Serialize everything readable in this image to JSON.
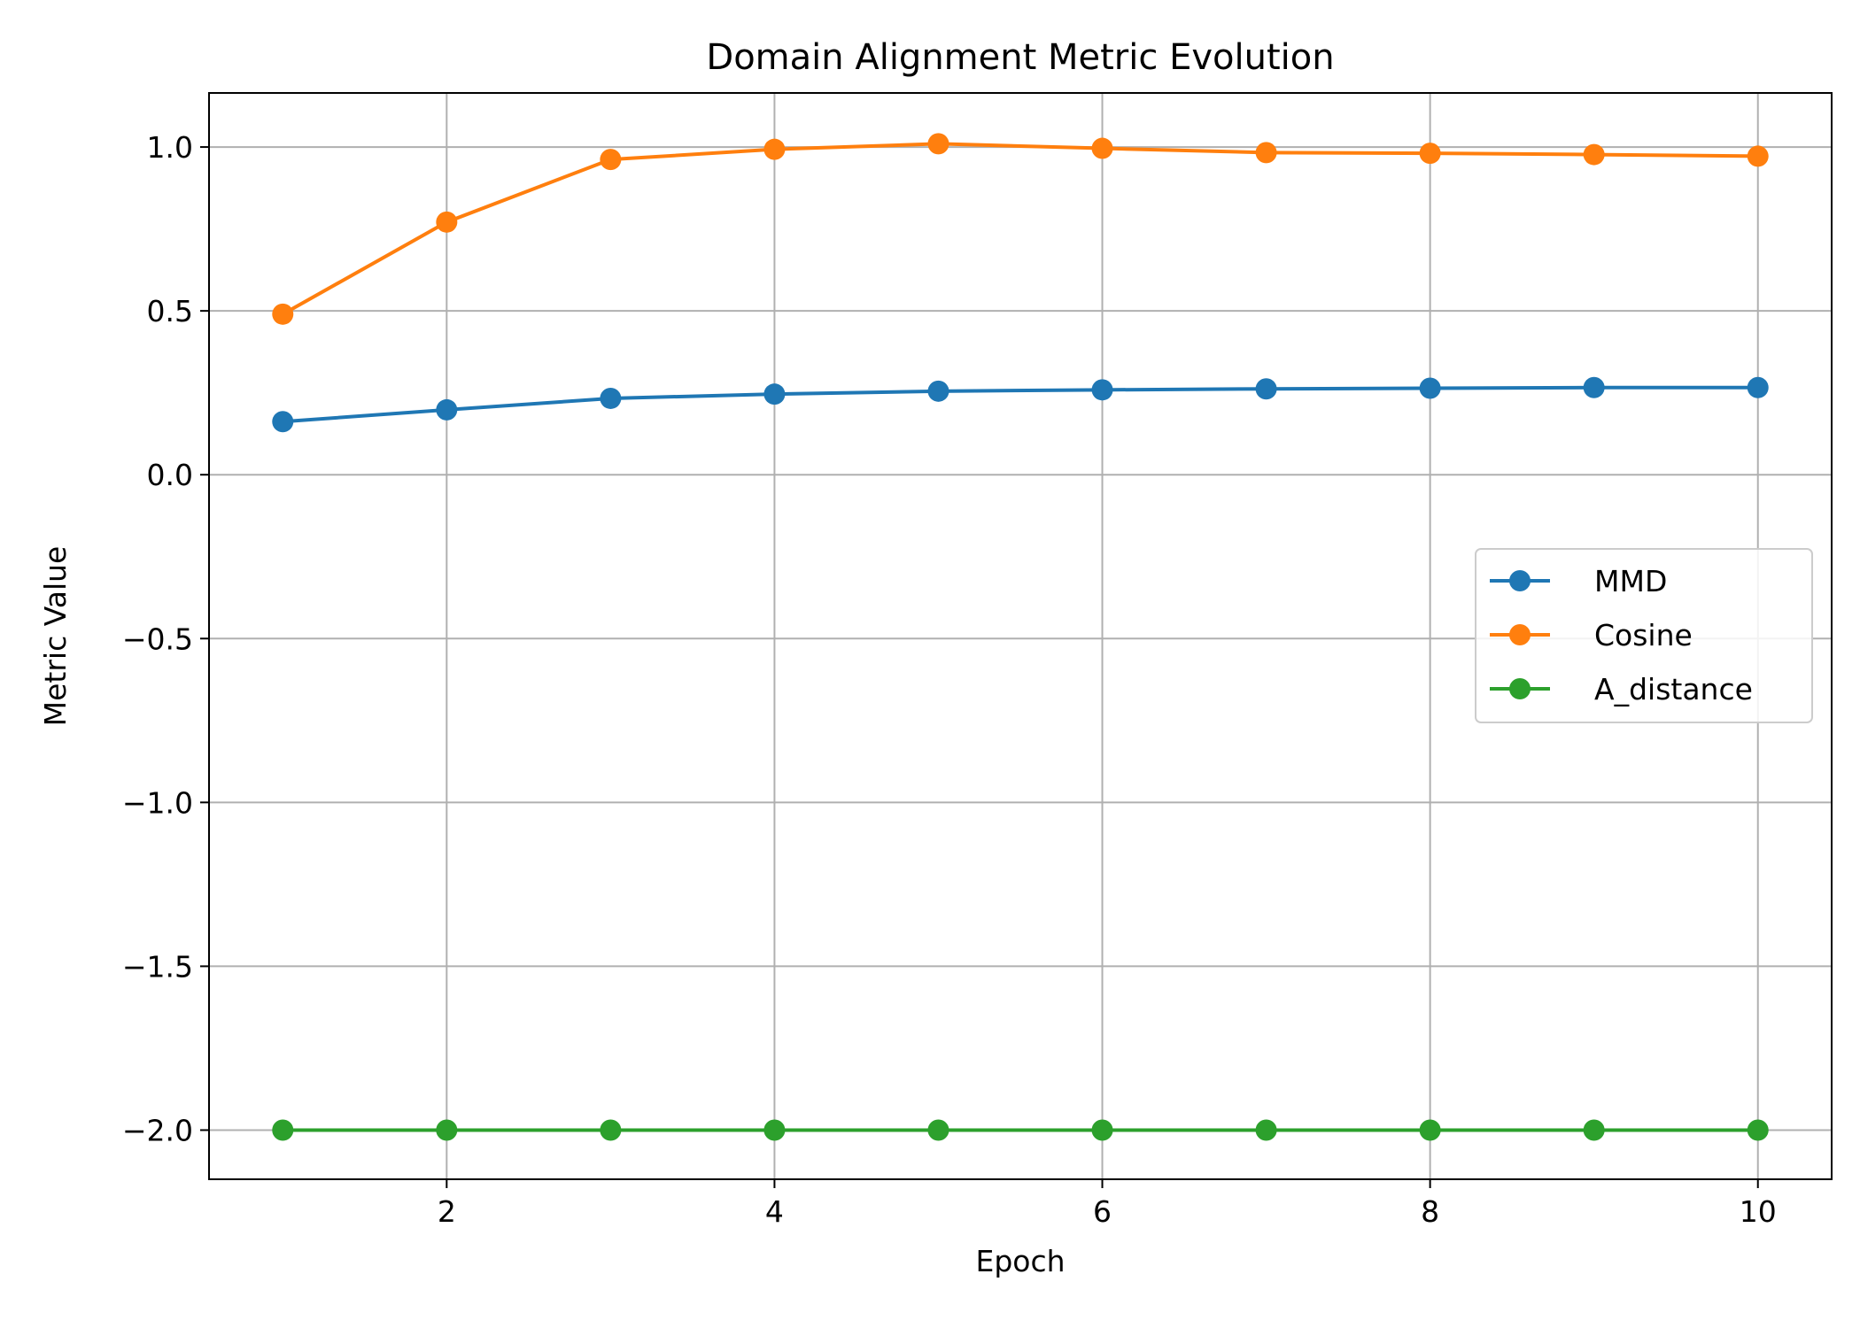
{
  "chart_data": {
    "type": "line",
    "title": "Domain Alignment Metric Evolution",
    "xlabel": "Epoch",
    "ylabel": "Metric Value",
    "xlim": [
      0.55,
      10.45
    ],
    "ylim": [
      -2.15,
      1.165
    ],
    "xticks": [
      2,
      4,
      6,
      8,
      10
    ],
    "xtick_labels": [
      "2",
      "4",
      "6",
      "8",
      "10"
    ],
    "yticks": [
      -2.0,
      -1.5,
      -1.0,
      -0.5,
      0.0,
      0.5,
      1.0
    ],
    "ytick_labels": [
      "−2.0",
      "−1.5",
      "−1.0",
      "−0.5",
      "0.0",
      "0.5",
      "1.0"
    ],
    "grid": true,
    "legend_position": "center-right",
    "x": [
      1,
      2,
      3,
      4,
      5,
      6,
      7,
      8,
      9,
      10
    ],
    "series": [
      {
        "name": "MMD",
        "color": "#1f77b4",
        "marker": "circle",
        "values": [
          0.162,
          0.198,
          0.233,
          0.246,
          0.255,
          0.259,
          0.262,
          0.264,
          0.266,
          0.266
        ]
      },
      {
        "name": "Cosine",
        "color": "#ff7f0e",
        "marker": "circle",
        "values": [
          0.49,
          0.771,
          0.962,
          0.993,
          1.01,
          0.996,
          0.983,
          0.981,
          0.977,
          0.972
        ]
      },
      {
        "name": "A_distance",
        "color": "#2ca02c",
        "marker": "circle",
        "values": [
          -2.0,
          -2.0,
          -2.0,
          -2.0,
          -2.0,
          -2.0,
          -2.0,
          -2.0,
          -2.0,
          -2.0
        ]
      }
    ]
  }
}
